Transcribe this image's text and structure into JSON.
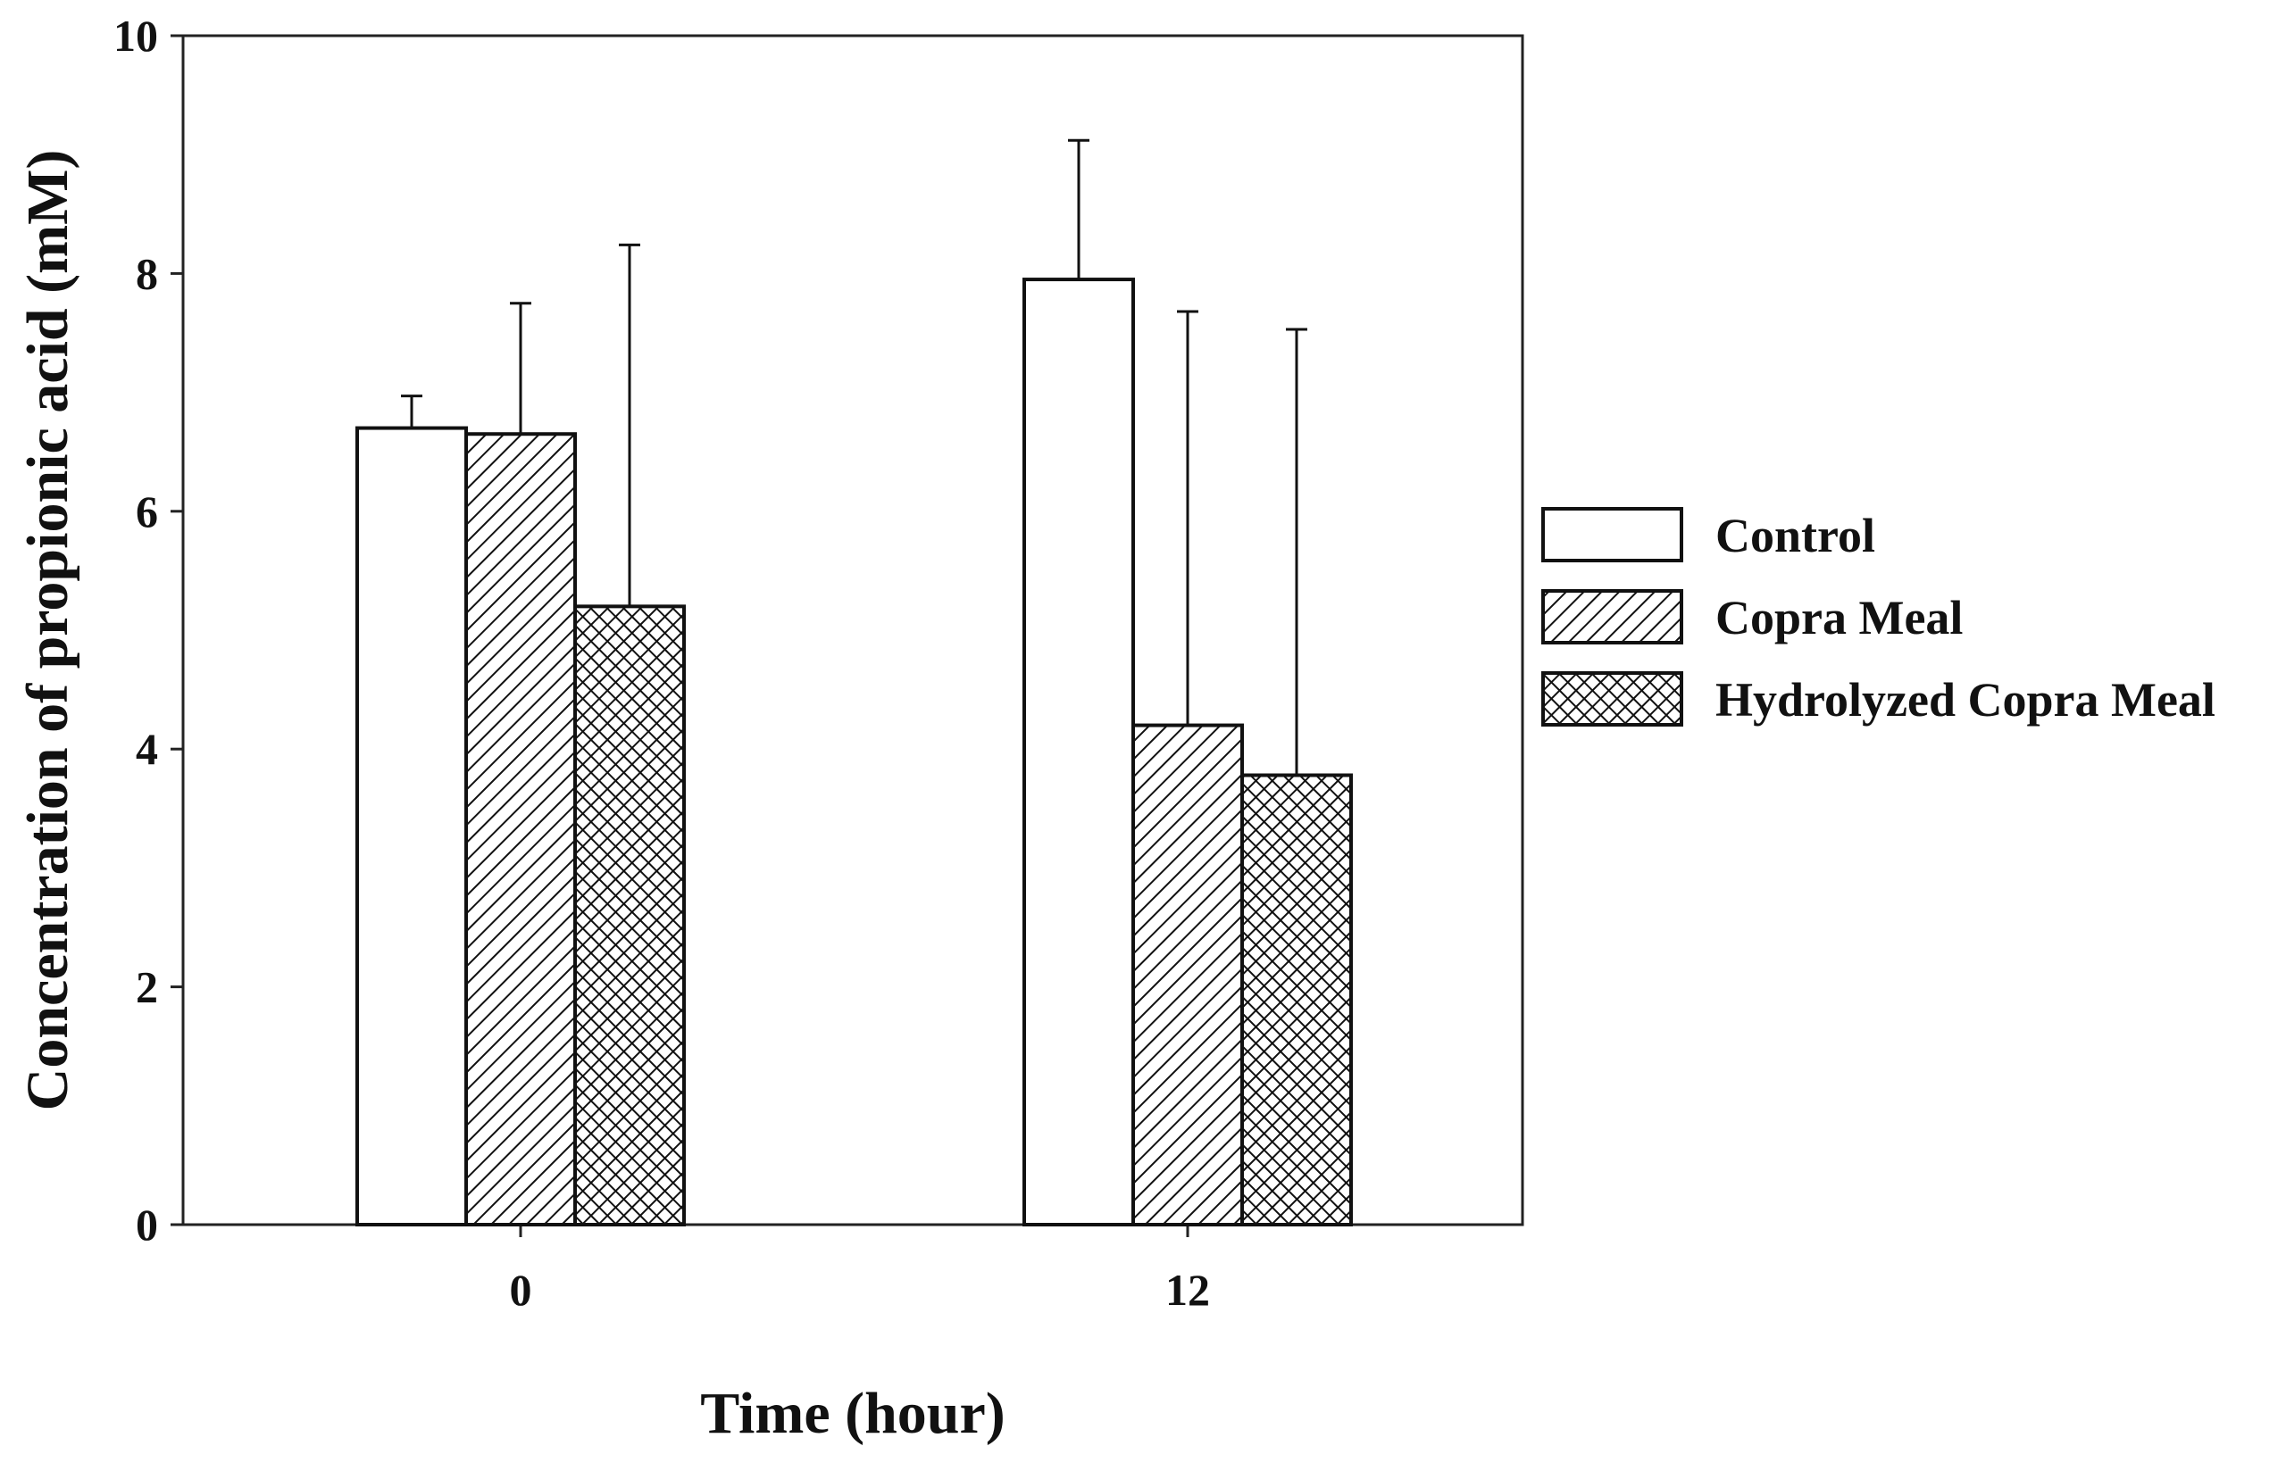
{
  "chart_data": {
    "type": "bar",
    "title": "",
    "xlabel": "Time (hour)",
    "ylabel": "Concentration of propionic acid (mM)",
    "ylim": [
      0,
      10
    ],
    "yticks": [
      0,
      2,
      4,
      6,
      8,
      10
    ],
    "categories": [
      "0",
      "12"
    ],
    "series": [
      {
        "name": "Control",
        "pattern": "none",
        "values": [
          6.7,
          7.95
        ],
        "errors": [
          0.27,
          1.17
        ]
      },
      {
        "name": "Copra Meal",
        "pattern": "diagonal-hatch",
        "values": [
          6.65,
          4.2
        ],
        "errors": [
          1.1,
          3.48
        ]
      },
      {
        "name": "Hydrolyzed Copra Meal",
        "pattern": "crosshatch",
        "values": [
          5.2,
          3.78
        ],
        "errors": [
          3.04,
          3.75
        ]
      }
    ],
    "legend_position": "right",
    "grid": false
  },
  "colors": {
    "axis": "#222222",
    "bar_stroke": "#111111",
    "bar_fill": "#ffffff"
  }
}
